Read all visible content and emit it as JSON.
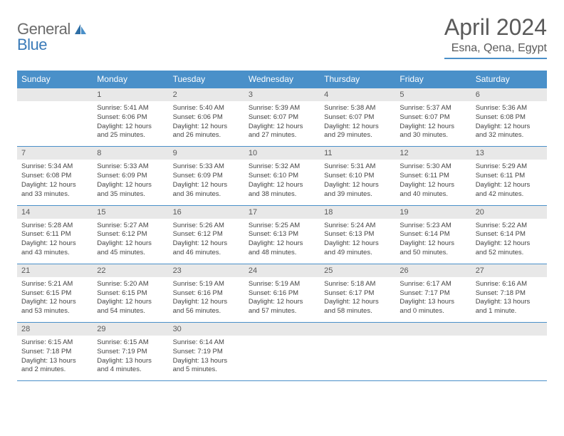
{
  "logo": {
    "part1": "General",
    "part2": "Blue"
  },
  "title": "April 2024",
  "location": "Esna, Qena, Egypt",
  "colors": {
    "header_bg": "#4a90c9",
    "daynum_bg": "#e8e8e8",
    "text": "#5a5a5a"
  },
  "daysOfWeek": [
    "Sunday",
    "Monday",
    "Tuesday",
    "Wednesday",
    "Thursday",
    "Friday",
    "Saturday"
  ],
  "weeks": [
    [
      {
        "num": "",
        "sunrise": "",
        "sunset": "",
        "daylight": ""
      },
      {
        "num": "1",
        "sunrise": "Sunrise: 5:41 AM",
        "sunset": "Sunset: 6:06 PM",
        "daylight": "Daylight: 12 hours and 25 minutes."
      },
      {
        "num": "2",
        "sunrise": "Sunrise: 5:40 AM",
        "sunset": "Sunset: 6:06 PM",
        "daylight": "Daylight: 12 hours and 26 minutes."
      },
      {
        "num": "3",
        "sunrise": "Sunrise: 5:39 AM",
        "sunset": "Sunset: 6:07 PM",
        "daylight": "Daylight: 12 hours and 27 minutes."
      },
      {
        "num": "4",
        "sunrise": "Sunrise: 5:38 AM",
        "sunset": "Sunset: 6:07 PM",
        "daylight": "Daylight: 12 hours and 29 minutes."
      },
      {
        "num": "5",
        "sunrise": "Sunrise: 5:37 AM",
        "sunset": "Sunset: 6:07 PM",
        "daylight": "Daylight: 12 hours and 30 minutes."
      },
      {
        "num": "6",
        "sunrise": "Sunrise: 5:36 AM",
        "sunset": "Sunset: 6:08 PM",
        "daylight": "Daylight: 12 hours and 32 minutes."
      }
    ],
    [
      {
        "num": "7",
        "sunrise": "Sunrise: 5:34 AM",
        "sunset": "Sunset: 6:08 PM",
        "daylight": "Daylight: 12 hours and 33 minutes."
      },
      {
        "num": "8",
        "sunrise": "Sunrise: 5:33 AM",
        "sunset": "Sunset: 6:09 PM",
        "daylight": "Daylight: 12 hours and 35 minutes."
      },
      {
        "num": "9",
        "sunrise": "Sunrise: 5:33 AM",
        "sunset": "Sunset: 6:09 PM",
        "daylight": "Daylight: 12 hours and 36 minutes."
      },
      {
        "num": "10",
        "sunrise": "Sunrise: 5:32 AM",
        "sunset": "Sunset: 6:10 PM",
        "daylight": "Daylight: 12 hours and 38 minutes."
      },
      {
        "num": "11",
        "sunrise": "Sunrise: 5:31 AM",
        "sunset": "Sunset: 6:10 PM",
        "daylight": "Daylight: 12 hours and 39 minutes."
      },
      {
        "num": "12",
        "sunrise": "Sunrise: 5:30 AM",
        "sunset": "Sunset: 6:11 PM",
        "daylight": "Daylight: 12 hours and 40 minutes."
      },
      {
        "num": "13",
        "sunrise": "Sunrise: 5:29 AM",
        "sunset": "Sunset: 6:11 PM",
        "daylight": "Daylight: 12 hours and 42 minutes."
      }
    ],
    [
      {
        "num": "14",
        "sunrise": "Sunrise: 5:28 AM",
        "sunset": "Sunset: 6:11 PM",
        "daylight": "Daylight: 12 hours and 43 minutes."
      },
      {
        "num": "15",
        "sunrise": "Sunrise: 5:27 AM",
        "sunset": "Sunset: 6:12 PM",
        "daylight": "Daylight: 12 hours and 45 minutes."
      },
      {
        "num": "16",
        "sunrise": "Sunrise: 5:26 AM",
        "sunset": "Sunset: 6:12 PM",
        "daylight": "Daylight: 12 hours and 46 minutes."
      },
      {
        "num": "17",
        "sunrise": "Sunrise: 5:25 AM",
        "sunset": "Sunset: 6:13 PM",
        "daylight": "Daylight: 12 hours and 48 minutes."
      },
      {
        "num": "18",
        "sunrise": "Sunrise: 5:24 AM",
        "sunset": "Sunset: 6:13 PM",
        "daylight": "Daylight: 12 hours and 49 minutes."
      },
      {
        "num": "19",
        "sunrise": "Sunrise: 5:23 AM",
        "sunset": "Sunset: 6:14 PM",
        "daylight": "Daylight: 12 hours and 50 minutes."
      },
      {
        "num": "20",
        "sunrise": "Sunrise: 5:22 AM",
        "sunset": "Sunset: 6:14 PM",
        "daylight": "Daylight: 12 hours and 52 minutes."
      }
    ],
    [
      {
        "num": "21",
        "sunrise": "Sunrise: 5:21 AM",
        "sunset": "Sunset: 6:15 PM",
        "daylight": "Daylight: 12 hours and 53 minutes."
      },
      {
        "num": "22",
        "sunrise": "Sunrise: 5:20 AM",
        "sunset": "Sunset: 6:15 PM",
        "daylight": "Daylight: 12 hours and 54 minutes."
      },
      {
        "num": "23",
        "sunrise": "Sunrise: 5:19 AM",
        "sunset": "Sunset: 6:16 PM",
        "daylight": "Daylight: 12 hours and 56 minutes."
      },
      {
        "num": "24",
        "sunrise": "Sunrise: 5:19 AM",
        "sunset": "Sunset: 6:16 PM",
        "daylight": "Daylight: 12 hours and 57 minutes."
      },
      {
        "num": "25",
        "sunrise": "Sunrise: 5:18 AM",
        "sunset": "Sunset: 6:17 PM",
        "daylight": "Daylight: 12 hours and 58 minutes."
      },
      {
        "num": "26",
        "sunrise": "Sunrise: 6:17 AM",
        "sunset": "Sunset: 7:17 PM",
        "daylight": "Daylight: 13 hours and 0 minutes."
      },
      {
        "num": "27",
        "sunrise": "Sunrise: 6:16 AM",
        "sunset": "Sunset: 7:18 PM",
        "daylight": "Daylight: 13 hours and 1 minute."
      }
    ],
    [
      {
        "num": "28",
        "sunrise": "Sunrise: 6:15 AM",
        "sunset": "Sunset: 7:18 PM",
        "daylight": "Daylight: 13 hours and 2 minutes."
      },
      {
        "num": "29",
        "sunrise": "Sunrise: 6:15 AM",
        "sunset": "Sunset: 7:19 PM",
        "daylight": "Daylight: 13 hours and 4 minutes."
      },
      {
        "num": "30",
        "sunrise": "Sunrise: 6:14 AM",
        "sunset": "Sunset: 7:19 PM",
        "daylight": "Daylight: 13 hours and 5 minutes."
      },
      {
        "num": "",
        "sunrise": "",
        "sunset": "",
        "daylight": ""
      },
      {
        "num": "",
        "sunrise": "",
        "sunset": "",
        "daylight": ""
      },
      {
        "num": "",
        "sunrise": "",
        "sunset": "",
        "daylight": ""
      },
      {
        "num": "",
        "sunrise": "",
        "sunset": "",
        "daylight": ""
      }
    ]
  ]
}
